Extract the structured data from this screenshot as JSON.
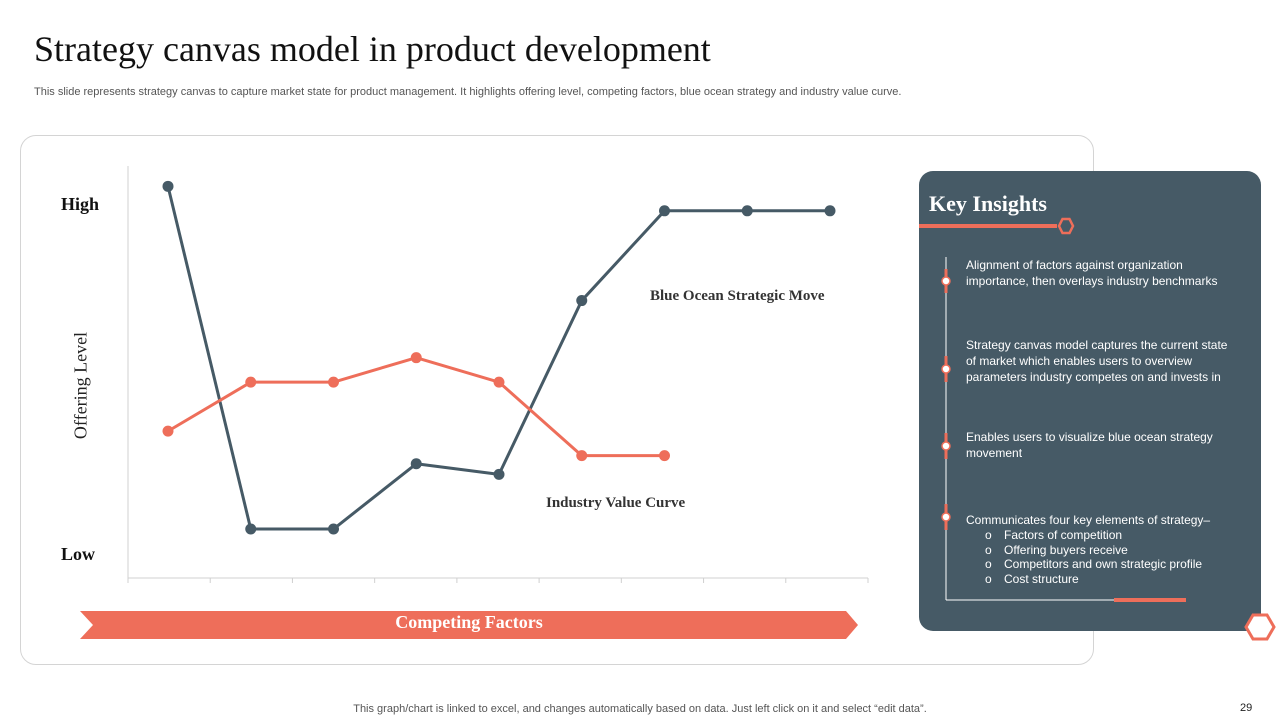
{
  "slide": {
    "title": "Strategy canvas model in product development",
    "subtitle": "This slide represents strategy canvas to capture market state for product management. It highlights offering level, competing factors, blue ocean strategy and industry value curve.",
    "footer": "This graph/chart is linked to excel, and changes automatically based on data. Just left click on it and select “edit data”.",
    "page_number": "29"
  },
  "chart_data": {
    "type": "line",
    "y_axis": {
      "label": "Offering Level",
      "top_label": "High",
      "bottom_label": "Low",
      "ylim": [
        0,
        5
      ]
    },
    "x_axis": {
      "label": "Competing Factors",
      "tick_count": 9
    },
    "grid": false,
    "series": [
      {
        "name": "Blue Ocean Strategic Move",
        "color": "#465a66",
        "x": [
          1,
          2,
          3,
          4,
          5,
          6,
          7,
          8,
          9
        ],
        "values": [
          4.8,
          0.6,
          0.6,
          1.4,
          1.27,
          3.4,
          4.5,
          4.5,
          4.5
        ]
      },
      {
        "name": "Industry Value Curve",
        "color": "#ee6e5a",
        "x": [
          1,
          2,
          3,
          4,
          5,
          6,
          7
        ],
        "values": [
          1.8,
          2.4,
          2.4,
          2.7,
          2.4,
          1.5,
          1.5
        ]
      }
    ]
  },
  "insights": {
    "title": "Key Insights",
    "items": [
      {
        "text": "Alignment of factors against organization importance, then overlays industry benchmarks"
      },
      {
        "text": "Strategy canvas model captures the current state of market which enables users to overview  parameters industry competes on and invests in"
      },
      {
        "text": "Enables users to visualize blue ocean strategy movement"
      },
      {
        "text": "Communicates four key elements of strategy–",
        "subitems": [
          "Factors of competition",
          "Offering buyers receive",
          "Competitors and own strategic profile",
          "Cost structure"
        ]
      }
    ],
    "bullet_symbol": "o"
  },
  "colors": {
    "accent": "#ee6e5a",
    "panel": "#465a66",
    "navy_line": "#465a66"
  }
}
